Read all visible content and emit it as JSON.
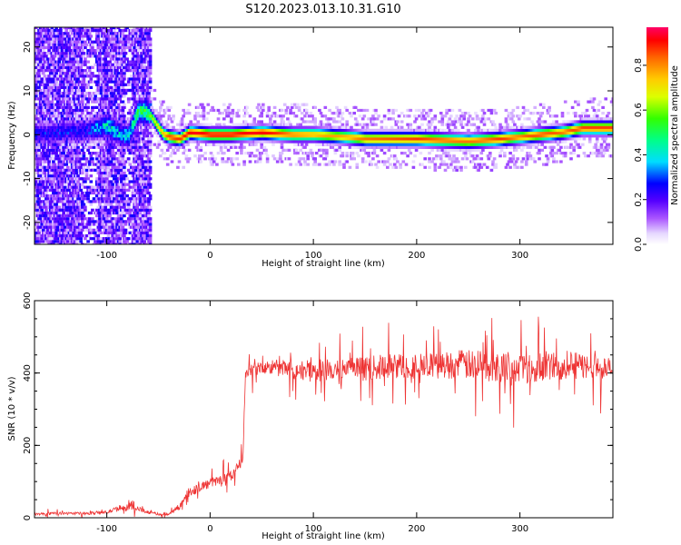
{
  "title": "S120.2023.013.10.31.G10",
  "chart_data": [
    {
      "type": "heatmap",
      "xlabel": "Height of straight line (km)",
      "ylabel": "Frequency (Hz)",
      "xlim": [
        -170,
        390
      ],
      "ylim": [
        -25,
        24.5
      ],
      "xticks": [
        "-100",
        "0",
        "100",
        "200",
        "300"
      ],
      "xtick_values": [
        -100,
        0,
        100,
        200,
        300
      ],
      "yticks": [
        "-20",
        "-10",
        "0",
        "10",
        "20"
      ],
      "ytick_values": [
        -20,
        -10,
        0,
        10,
        20
      ],
      "colorbar": {
        "label": "Normalized spectral amplitude",
        "range": [
          0,
          0.97
        ],
        "ticks": [
          "0.0",
          "0.2",
          "0.4",
          "0.6",
          "0.8"
        ],
        "tick_values": [
          0,
          0.2,
          0.4,
          0.6,
          0.8
        ]
      },
      "ridge": {
        "x": [
          -170,
          -120,
          -100,
          -90,
          -80,
          -70,
          -60,
          -50,
          -45,
          -40,
          -30,
          -20,
          0,
          20,
          50,
          80,
          100,
          130,
          150,
          200,
          250,
          280,
          300,
          320,
          340,
          360,
          390
        ],
        "frequency": [
          0,
          1,
          2,
          0.5,
          -0.5,
          5.5,
          5,
          1.5,
          0,
          -0.5,
          -1,
          0.5,
          0,
          0,
          0.5,
          0,
          0,
          -0.5,
          -1,
          -1,
          -1.5,
          -1,
          -0.5,
          0,
          0.5,
          1.5,
          1.5
        ],
        "peak_amplitude": [
          0.3,
          0.3,
          0.5,
          0.45,
          0.45,
          0.55,
          0.6,
          0.75,
          0.8,
          0.9,
          0.9,
          0.95,
          0.95,
          0.95,
          0.95,
          0.85,
          0.8,
          0.8,
          0.85,
          0.9,
          0.85,
          0.9,
          0.85,
          0.9,
          0.85,
          0.9,
          0.9
        ]
      }
    },
    {
      "type": "line",
      "xlabel": "Height of straight line (km)",
      "ylabel": "SNR (10 * v/v)",
      "xlim": [
        -170,
        390
      ],
      "ylim": [
        0,
        600
      ],
      "xticks": [
        "-100",
        "0",
        "100",
        "200",
        "300"
      ],
      "xtick_values": [
        -100,
        0,
        100,
        200,
        300
      ],
      "yticks": [
        "0",
        "200",
        "400",
        "600"
      ],
      "ytick_values": [
        0,
        200,
        400,
        600
      ],
      "color": "#ee3333",
      "x": [
        -170,
        -150,
        -120,
        -100,
        -90,
        -80,
        -70,
        -60,
        -50,
        -40,
        -30,
        -20,
        -10,
        0,
        10,
        20,
        28,
        32,
        34,
        40,
        60,
        80,
        100,
        120,
        140,
        160,
        180,
        200,
        220,
        240,
        260,
        280,
        300,
        320,
        340,
        360,
        380,
        390
      ],
      "values": [
        10,
        12,
        12,
        15,
        25,
        30,
        25,
        15,
        10,
        10,
        30,
        70,
        85,
        95,
        105,
        115,
        145,
        165,
        400,
        410,
        415,
        410,
        405,
        410,
        410,
        415,
        420,
        420,
        420,
        425,
        420,
        420,
        415,
        420,
        420,
        420,
        415,
        410
      ],
      "spread": [
        8,
        8,
        8,
        10,
        15,
        20,
        15,
        10,
        8,
        8,
        20,
        30,
        30,
        30,
        30,
        30,
        30,
        30,
        35,
        40,
        50,
        60,
        70,
        70,
        75,
        75,
        80,
        80,
        80,
        90,
        95,
        100,
        100,
        95,
        90,
        80,
        70,
        70
      ]
    }
  ]
}
